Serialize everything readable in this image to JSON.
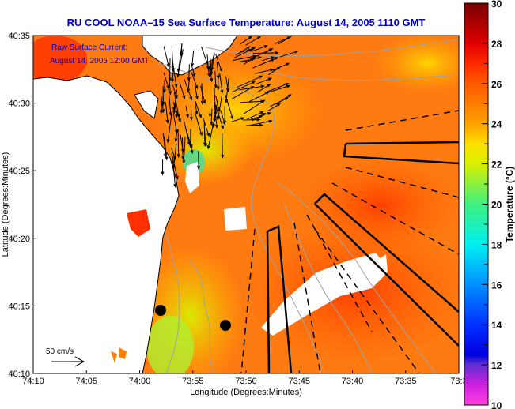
{
  "title": "RU COOL  NOAA–15  Sea Surface Temperature:  August 14, 2005 1110 GMT",
  "annotation": {
    "line1": "Raw Surface Current:",
    "line2": "August 14, 2005 12:00 GMT"
  },
  "scale_label": "50 cm/s",
  "axes": {
    "xlabel": "Longitude (Degrees:Minutes)",
    "ylabel": "Latitude (Degrees:Minutes)",
    "xticks": [
      "74:10",
      "74:05",
      "74:00",
      "73:55",
      "73:50",
      "73:45",
      "73:40",
      "73:35",
      "73:3"
    ],
    "yticks": [
      "40:35",
      "40:30",
      "40:25",
      "40:20",
      "40:15",
      "40:10"
    ]
  },
  "colorbar": {
    "label": "Temperature (°C)",
    "min": 10,
    "max": 30,
    "ticks": [
      "30",
      "28",
      "26",
      "24",
      "22",
      "20",
      "18",
      "16",
      "14",
      "12",
      "10"
    ],
    "stops": [
      {
        "v": 30,
        "c": "#7a0000"
      },
      {
        "v": 28,
        "c": "#e00000"
      },
      {
        "v": 27,
        "c": "#ff2a00"
      },
      {
        "v": 26,
        "c": "#ff5a00"
      },
      {
        "v": 24,
        "c": "#ffa000"
      },
      {
        "v": 23,
        "c": "#ffe000"
      },
      {
        "v": 22,
        "c": "#d8f000"
      },
      {
        "v": 20,
        "c": "#40f080"
      },
      {
        "v": 18,
        "c": "#00f0f0"
      },
      {
        "v": 16,
        "c": "#0090ff"
      },
      {
        "v": 14,
        "c": "#0030ff"
      },
      {
        "v": 12.5,
        "c": "#0000e0"
      },
      {
        "v": 12,
        "c": "#6030d0"
      },
      {
        "v": 11,
        "c": "#d020e0"
      },
      {
        "v": 10,
        "c": "#ff40e0"
      }
    ]
  },
  "colors": {
    "title": "#0000cc",
    "water": "#ff6a10",
    "land": "#ffffff",
    "contour": "#a0a0a0"
  }
}
